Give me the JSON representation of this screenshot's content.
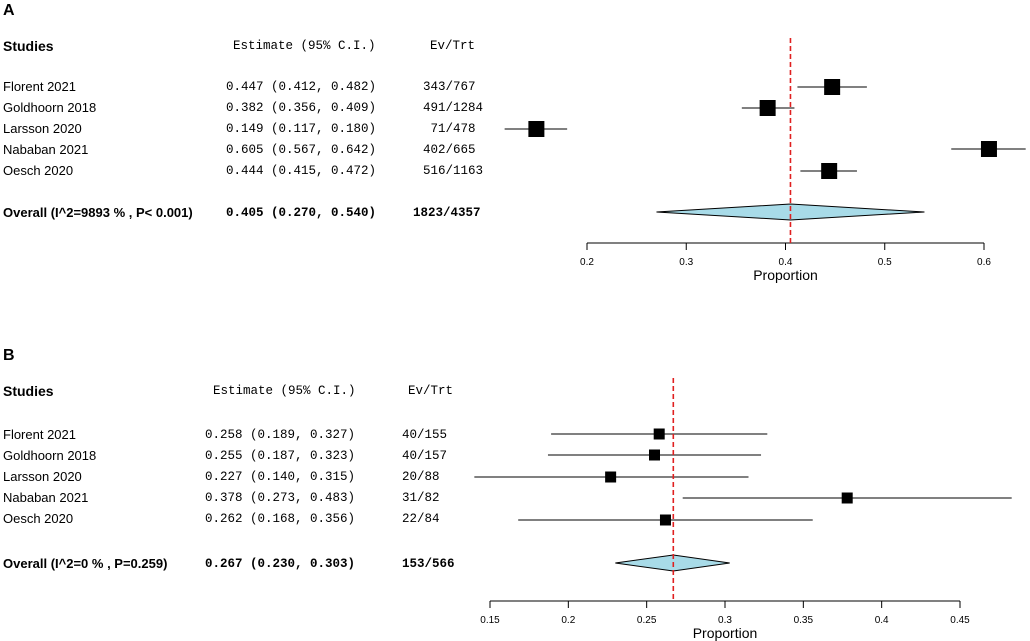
{
  "colors": {
    "diamond_fill": "#a8dbe8",
    "ref_line": "#e02020",
    "marker": "#000000"
  },
  "chart_data": [
    {
      "type": "forest",
      "panel_label": "A",
      "headers": {
        "studies": "Studies",
        "estimate": "Estimate (95% C.I.)",
        "evtrt": "Ev/Trt"
      },
      "xlabel": "Proportion",
      "xlim": [
        0.2,
        0.6
      ],
      "ticks": [
        0.2,
        0.3,
        0.4,
        0.5,
        0.6
      ],
      "tick_labels": [
        "0.2",
        "0.3",
        "0.4",
        "0.5",
        "0.6"
      ],
      "reference": 0.405,
      "studies": [
        {
          "name": "Florent 2021",
          "est": 0.447,
          "lo": 0.412,
          "hi": 0.482,
          "est_text": "0.447 (0.412, 0.482)",
          "evtrt": "343/767",
          "weight": 0.2
        },
        {
          "name": "Goldhoorn 2018",
          "est": 0.382,
          "lo": 0.356,
          "hi": 0.409,
          "est_text": "0.382 (0.356, 0.409)",
          "evtrt": "491/1284",
          "weight": 0.2
        },
        {
          "name": "Larsson 2020",
          "est": 0.149,
          "lo": 0.117,
          "hi": 0.18,
          "est_text": "0.149 (0.117, 0.180)",
          "evtrt": " 71/478",
          "weight": 0.2
        },
        {
          "name": "Nababan 2021",
          "est": 0.605,
          "lo": 0.567,
          "hi": 0.642,
          "est_text": "0.605 (0.567, 0.642)",
          "evtrt": "402/665",
          "weight": 0.2
        },
        {
          "name": "Oesch 2020",
          "est": 0.444,
          "lo": 0.415,
          "hi": 0.472,
          "est_text": "0.444 (0.415, 0.472)",
          "evtrt": "516/1163",
          "weight": 0.2
        }
      ],
      "overall": {
        "label": "Overall (I^2=9893 % , P< 0.001)",
        "est": 0.405,
        "lo": 0.27,
        "hi": 0.54,
        "est_text": "0.405 (0.270, 0.540)",
        "evtrt": "1823/4357"
      }
    },
    {
      "type": "forest",
      "panel_label": "B",
      "headers": {
        "studies": "Studies",
        "estimate": "Estimate (95% C.I.)",
        "evtrt": "Ev/Trt"
      },
      "xlabel": "Proportion",
      "xlim": [
        0.15,
        0.45
      ],
      "ticks": [
        0.15,
        0.2,
        0.25,
        0.3,
        0.35,
        0.4,
        0.45
      ],
      "tick_labels": [
        "0.15",
        "0.2",
        "0.25",
        "0.3",
        "0.35",
        "0.4",
        "0.45"
      ],
      "reference": 0.267,
      "studies": [
        {
          "name": "Florent 2021",
          "est": 0.258,
          "lo": 0.189,
          "hi": 0.327,
          "est_text": "0.258 (0.189, 0.327)",
          "evtrt": "40/155",
          "weight": 0.2
        },
        {
          "name": "Goldhoorn 2018",
          "est": 0.255,
          "lo": 0.187,
          "hi": 0.323,
          "est_text": "0.255 (0.187, 0.323)",
          "evtrt": "40/157",
          "weight": 0.2
        },
        {
          "name": "Larsson 2020",
          "est": 0.227,
          "lo": 0.14,
          "hi": 0.315,
          "est_text": "0.227 (0.140, 0.315)",
          "evtrt": "20/88",
          "weight": 0.2
        },
        {
          "name": "Nababan 2021",
          "est": 0.378,
          "lo": 0.273,
          "hi": 0.483,
          "est_text": "0.378 (0.273, 0.483)",
          "evtrt": "31/82",
          "weight": 0.2
        },
        {
          "name": "Oesch 2020",
          "est": 0.262,
          "lo": 0.168,
          "hi": 0.356,
          "est_text": "0.262 (0.168, 0.356)",
          "evtrt": "22/84",
          "weight": 0.2
        }
      ],
      "overall": {
        "label": "Overall (I^2=0 % , P=0.259)",
        "est": 0.267,
        "lo": 0.23,
        "hi": 0.303,
        "est_text": "0.267 (0.230, 0.303)",
        "evtrt": "153/566"
      }
    }
  ]
}
